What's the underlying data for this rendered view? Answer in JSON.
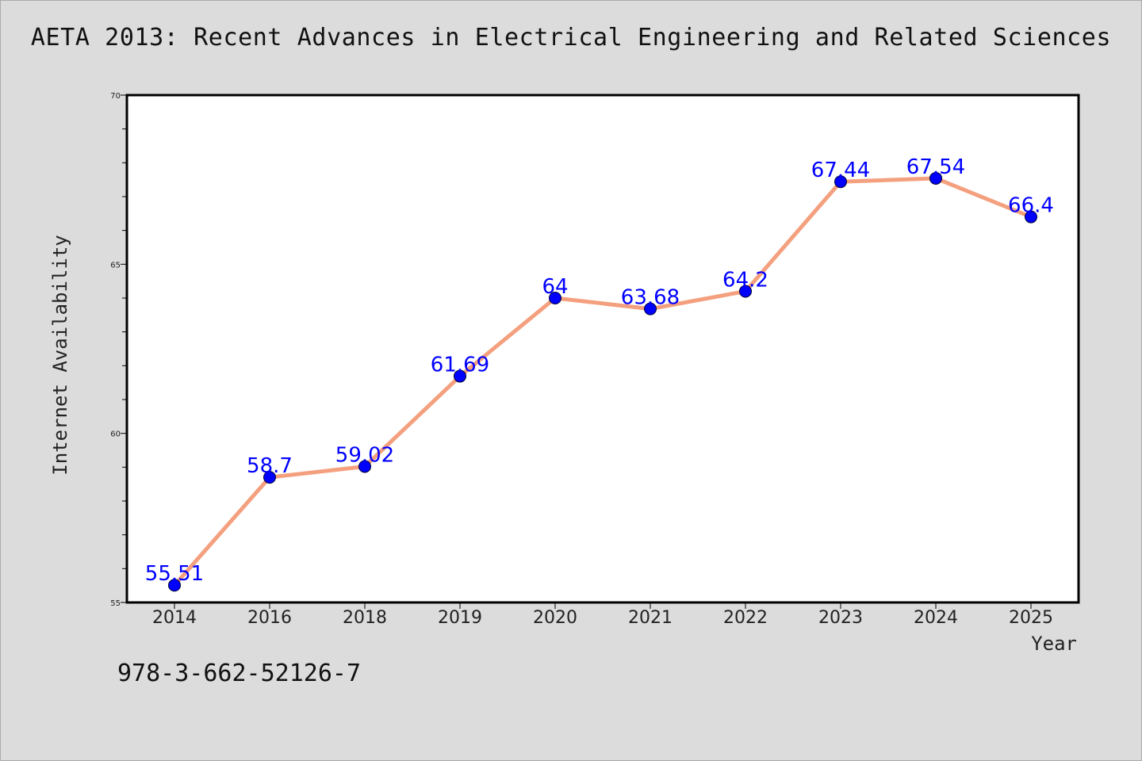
{
  "header": {
    "title": "AETA 2013: Recent Advances in Electrical Engineering and Related Sciences"
  },
  "footer": {
    "isbn": "978-3-662-52126-7"
  },
  "chart_data": {
    "type": "line",
    "title": "AETA 2013: Recent Advances in Electrical Engineering and Related Sciences",
    "xlabel": "Year",
    "ylabel": "Internet Availability",
    "categories": [
      "2014",
      "2016",
      "2018",
      "2019",
      "2020",
      "2021",
      "2022",
      "2023",
      "2024",
      "2025"
    ],
    "series": [
      {
        "values": [
          55.51,
          58.7,
          59.02,
          61.69,
          64,
          63.68,
          64.2,
          67.44,
          67.54,
          66.4
        ],
        "labels": [
          "55.51",
          "58.7",
          "59.02",
          "61.69",
          "64",
          "63.68",
          "64.2",
          "67.44",
          "67.54",
          "66.4"
        ]
      }
    ],
    "ylim": [
      55,
      70
    ],
    "yticks": [
      "55",
      "60",
      "65",
      "70"
    ],
    "grid": false,
    "legend": "none",
    "colors": {
      "line": "#f4a07e",
      "marker": "#0000ff",
      "data_label": "#0000ff",
      "background": "#dcdcdc",
      "plot_area": "#ffffff"
    }
  }
}
